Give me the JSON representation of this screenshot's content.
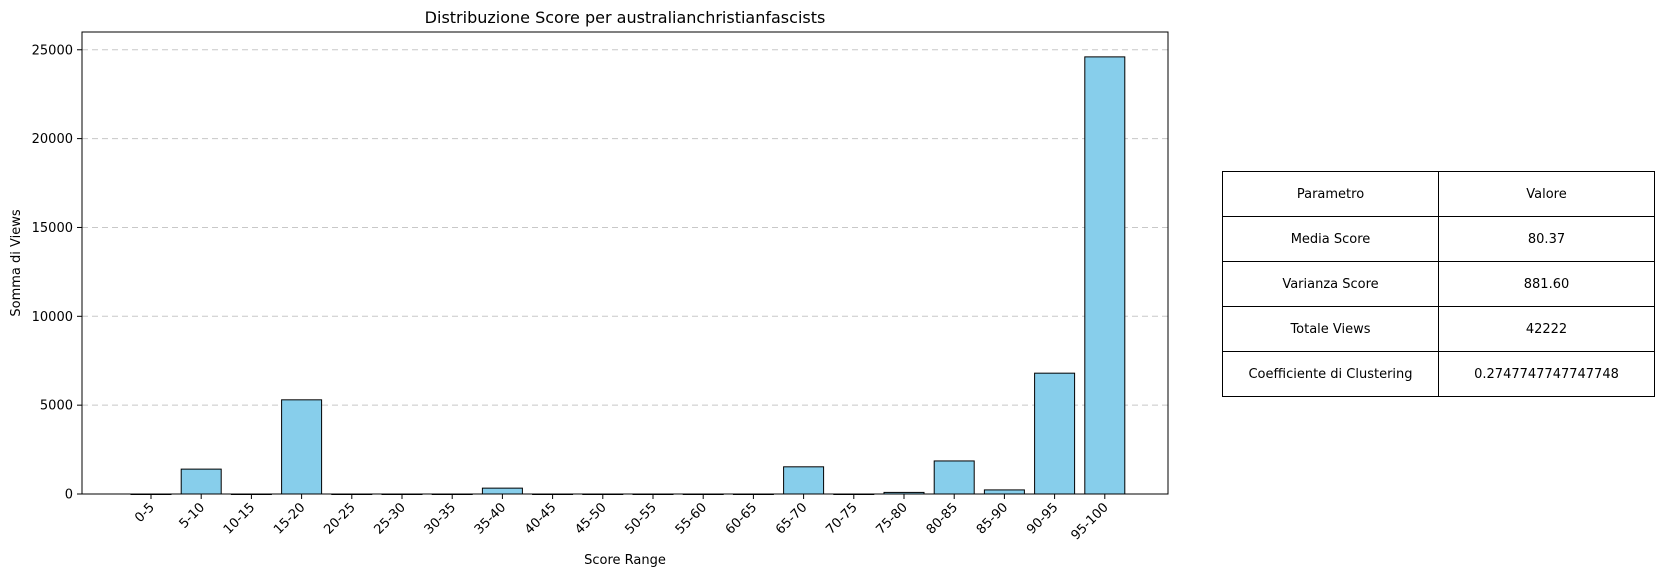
{
  "chart_data": {
    "type": "bar",
    "title": "Distribuzione Score per australianchristianfascists",
    "xlabel": "Score Range",
    "ylabel": "Somma di Views",
    "categories": [
      "0-5",
      "5-10",
      "10-15",
      "15-20",
      "20-25",
      "25-30",
      "30-35",
      "35-40",
      "40-45",
      "45-50",
      "50-55",
      "55-60",
      "60-65",
      "65-70",
      "70-75",
      "75-80",
      "80-85",
      "85-90",
      "90-95",
      "95-100"
    ],
    "values": [
      0,
      1400,
      0,
      5300,
      0,
      0,
      0,
      330,
      0,
      0,
      0,
      0,
      0,
      1530,
      0,
      90,
      1860,
      230,
      6800,
      24600
    ],
    "ylim": [
      0,
      26000
    ],
    "yticks": [
      0,
      5000,
      10000,
      15000,
      20000,
      25000
    ],
    "bar_color": "#87CEEB",
    "edge_color": "#000000",
    "grid": "y-dashed"
  },
  "table": {
    "header": [
      "Parametro",
      "Valore"
    ],
    "rows": [
      [
        "Media Score",
        "80.37"
      ],
      [
        "Varianza Score",
        "881.60"
      ],
      [
        "Totale Views",
        "42222"
      ],
      [
        "Coefficiente di Clustering",
        "0.2747747747747748"
      ]
    ]
  }
}
